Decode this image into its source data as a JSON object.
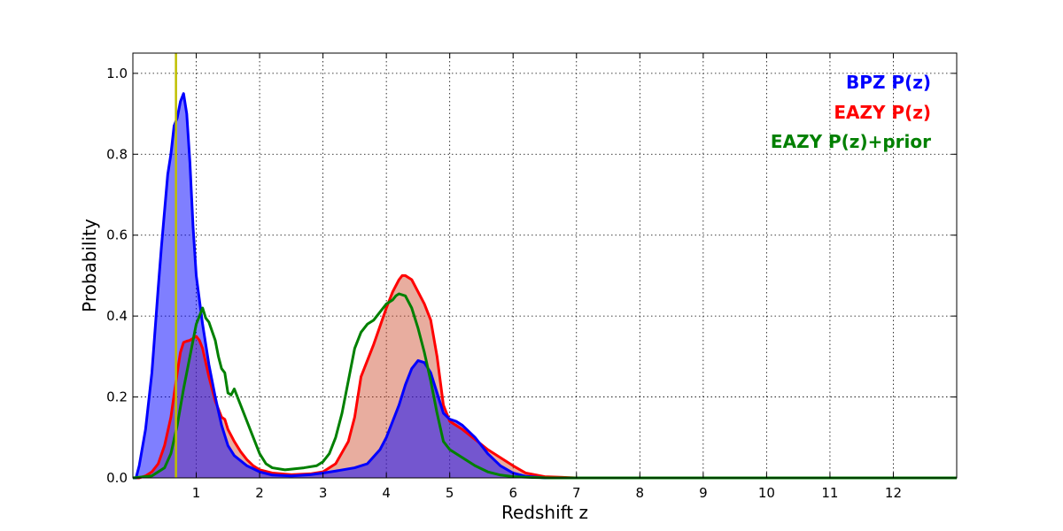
{
  "chart_data": {
    "type": "area",
    "title": "",
    "xlabel": "Redshift z",
    "ylabel": "Probability",
    "xlim": [
      0,
      13
    ],
    "ylim": [
      0,
      1.05
    ],
    "xticks": [
      1,
      2,
      3,
      4,
      5,
      6,
      7,
      8,
      9,
      10,
      11,
      12
    ],
    "yticks": [
      0.0,
      0.2,
      0.4,
      0.6,
      0.8,
      1.0
    ],
    "xtick_labels": [
      "1",
      "2",
      "3",
      "4",
      "5",
      "6",
      "7",
      "8",
      "9",
      "10",
      "11",
      "12"
    ],
    "ytick_labels": [
      "0.0",
      "0.2",
      "0.4",
      "0.6",
      "0.8",
      "1.0"
    ],
    "grid": true,
    "legend_position": "top-right",
    "reference_line": {
      "x": 0.68,
      "color": "#bfbf00"
    },
    "series": [
      {
        "name": "BPZ P(z)",
        "color": "#0000ff",
        "fill": "#0000ff",
        "fill_opacity": 0.5,
        "x": [
          0.0,
          0.05,
          0.1,
          0.2,
          0.3,
          0.4,
          0.45,
          0.5,
          0.55,
          0.6,
          0.65,
          0.7,
          0.75,
          0.8,
          0.85,
          0.9,
          0.95,
          1.0,
          1.1,
          1.2,
          1.3,
          1.4,
          1.5,
          1.6,
          1.8,
          2.0,
          2.2,
          2.5,
          2.8,
          3.0,
          3.2,
          3.5,
          3.7,
          3.9,
          4.0,
          4.1,
          4.2,
          4.3,
          4.4,
          4.5,
          4.6,
          4.7,
          4.8,
          4.9,
          5.0,
          5.1,
          5.2,
          5.4,
          5.6,
          5.8,
          6.0,
          6.2,
          6.5,
          7.0,
          8.0,
          10.0,
          12.0,
          13.0
        ],
        "y": [
          0.0,
          0.0,
          0.03,
          0.12,
          0.26,
          0.47,
          0.57,
          0.66,
          0.75,
          0.8,
          0.87,
          0.89,
          0.93,
          0.95,
          0.9,
          0.78,
          0.62,
          0.5,
          0.38,
          0.28,
          0.2,
          0.13,
          0.08,
          0.055,
          0.03,
          0.015,
          0.007,
          0.005,
          0.008,
          0.012,
          0.017,
          0.025,
          0.035,
          0.07,
          0.1,
          0.14,
          0.18,
          0.23,
          0.27,
          0.29,
          0.285,
          0.26,
          0.21,
          0.16,
          0.145,
          0.14,
          0.13,
          0.1,
          0.06,
          0.03,
          0.012,
          0.004,
          0.0,
          0.0,
          0.0,
          0.0,
          0.0,
          0.0
        ]
      },
      {
        "name": "EAZY P(z)",
        "color": "#ff0000",
        "fill": "#cc4a2a",
        "fill_opacity": 0.45,
        "x": [
          0.0,
          0.1,
          0.2,
          0.3,
          0.4,
          0.5,
          0.6,
          0.7,
          0.75,
          0.8,
          0.85,
          0.9,
          0.95,
          1.0,
          1.05,
          1.1,
          1.2,
          1.3,
          1.4,
          1.45,
          1.5,
          1.6,
          1.7,
          1.8,
          1.9,
          2.0,
          2.2,
          2.5,
          2.8,
          3.0,
          3.2,
          3.4,
          3.5,
          3.6,
          3.8,
          4.0,
          4.1,
          4.2,
          4.25,
          4.3,
          4.4,
          4.5,
          4.6,
          4.7,
          4.8,
          4.9,
          5.0,
          5.1,
          5.2,
          5.4,
          5.6,
          5.8,
          6.0,
          6.2,
          6.5,
          7.0,
          8.0,
          10.0,
          12.0,
          13.0
        ],
        "y": [
          0.0,
          0.0,
          0.005,
          0.015,
          0.035,
          0.08,
          0.15,
          0.26,
          0.31,
          0.335,
          0.338,
          0.34,
          0.345,
          0.35,
          0.34,
          0.32,
          0.25,
          0.19,
          0.15,
          0.145,
          0.12,
          0.09,
          0.065,
          0.045,
          0.03,
          0.02,
          0.012,
          0.008,
          0.01,
          0.015,
          0.035,
          0.09,
          0.15,
          0.25,
          0.33,
          0.42,
          0.46,
          0.49,
          0.5,
          0.5,
          0.49,
          0.46,
          0.43,
          0.39,
          0.3,
          0.18,
          0.14,
          0.13,
          0.12,
          0.095,
          0.07,
          0.05,
          0.03,
          0.012,
          0.003,
          0.0,
          0.0,
          0.0,
          0.0,
          0.0
        ]
      },
      {
        "name": "EAZY P(z)+prior",
        "color": "#008000",
        "fill": "none",
        "fill_opacity": 0.0,
        "x": [
          0.0,
          0.3,
          0.5,
          0.6,
          0.7,
          0.8,
          0.9,
          1.0,
          1.05,
          1.1,
          1.15,
          1.2,
          1.3,
          1.35,
          1.4,
          1.45,
          1.5,
          1.55,
          1.6,
          1.7,
          1.8,
          1.9,
          2.0,
          2.1,
          2.2,
          2.4,
          2.7,
          2.9,
          3.0,
          3.1,
          3.2,
          3.3,
          3.4,
          3.5,
          3.6,
          3.7,
          3.8,
          3.9,
          4.0,
          4.1,
          4.15,
          4.2,
          4.3,
          4.4,
          4.5,
          4.6,
          4.7,
          4.8,
          4.9,
          5.0,
          5.2,
          5.4,
          5.6,
          5.8,
          6.0,
          6.3,
          6.6,
          7.0,
          8.0,
          10.0,
          12.0,
          13.0
        ],
        "y": [
          0.0,
          0.005,
          0.025,
          0.06,
          0.13,
          0.22,
          0.3,
          0.38,
          0.4,
          0.42,
          0.395,
          0.385,
          0.34,
          0.3,
          0.27,
          0.26,
          0.21,
          0.205,
          0.22,
          0.18,
          0.14,
          0.1,
          0.06,
          0.035,
          0.025,
          0.02,
          0.025,
          0.03,
          0.04,
          0.06,
          0.1,
          0.16,
          0.24,
          0.32,
          0.36,
          0.38,
          0.39,
          0.41,
          0.43,
          0.44,
          0.45,
          0.455,
          0.45,
          0.42,
          0.37,
          0.31,
          0.24,
          0.16,
          0.09,
          0.07,
          0.05,
          0.03,
          0.015,
          0.007,
          0.003,
          0.001,
          0.0,
          0.0,
          0.0,
          0.0,
          0.0,
          0.0
        ]
      }
    ]
  }
}
